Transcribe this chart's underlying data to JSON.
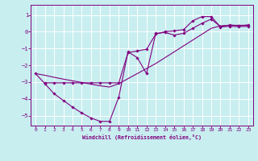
{
  "xlabel": "Windchill (Refroidissement éolien,°C)",
  "background_color": "#c8eef0",
  "grid_color": "#ffffff",
  "line_color": "#800080",
  "xlim": [
    -0.5,
    23.5
  ],
  "ylim": [
    -5.6,
    1.6
  ],
  "yticks": [
    1,
    0,
    -1,
    -2,
    -3,
    -4,
    -5
  ],
  "xticks": [
    0,
    1,
    2,
    3,
    4,
    5,
    6,
    7,
    8,
    9,
    10,
    11,
    12,
    13,
    14,
    15,
    16,
    17,
    18,
    19,
    20,
    21,
    22,
    23
  ],
  "series1_x": [
    0,
    1,
    2,
    3,
    4,
    5,
    6,
    7,
    8,
    9,
    10,
    11,
    12,
    13,
    14,
    15,
    16,
    17,
    18,
    19,
    20,
    21,
    22,
    23
  ],
  "series1_y": [
    -2.5,
    -3.1,
    -3.7,
    -4.1,
    -4.5,
    -4.85,
    -5.15,
    -5.35,
    -5.35,
    -3.9,
    -1.2,
    -1.55,
    -2.5,
    -0.1,
    -0.05,
    -0.2,
    -0.1,
    0.2,
    0.5,
    0.75,
    0.3,
    0.4,
    0.35,
    0.4
  ],
  "series2_x": [
    1,
    2,
    3,
    4,
    5,
    6,
    7,
    8,
    9,
    10,
    11,
    12,
    13,
    14,
    15,
    16,
    17,
    18,
    19,
    20,
    21,
    22,
    23
  ],
  "series2_y": [
    -3.05,
    -3.05,
    -3.05,
    -3.05,
    -3.05,
    -3.05,
    -3.05,
    -3.05,
    -3.05,
    -1.25,
    -1.15,
    -1.05,
    -0.15,
    0.0,
    0.05,
    0.12,
    0.65,
    0.9,
    0.9,
    0.28,
    0.32,
    0.3,
    0.32
  ],
  "series3_x": [
    0,
    1,
    2,
    3,
    4,
    5,
    6,
    7,
    8,
    9,
    10,
    11,
    12,
    13,
    14,
    15,
    16,
    17,
    18,
    19,
    20,
    21,
    22,
    23
  ],
  "series3_y": [
    -2.5,
    -2.6,
    -2.72,
    -2.83,
    -2.93,
    -3.03,
    -3.13,
    -3.23,
    -3.3,
    -3.1,
    -2.8,
    -2.5,
    -2.2,
    -1.9,
    -1.55,
    -1.2,
    -0.85,
    -0.5,
    -0.15,
    0.2,
    0.35,
    0.38,
    0.38,
    0.38
  ]
}
